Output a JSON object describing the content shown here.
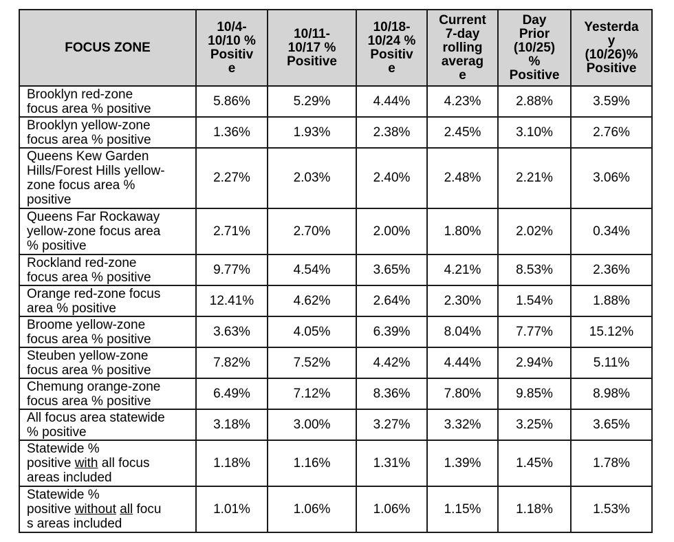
{
  "headers": [
    "FOCUS ZONE",
    "10/4-\n10/10 %\nPositiv\ne",
    "10/11-\n10/17 %\nPositive",
    "10/18-\n10/24 %\nPositiv\ne",
    "Current\n7-day\nrolling\naverag\ne",
    "Day\nPrior\n(10/25)\n%\nPositive",
    "Yesterda\ny\n(10/26)%\nPositive"
  ],
  "rows": [
    {
      "zone": "Brooklyn red-zone\nfocus area % positive",
      "values": [
        "5.86%",
        "5.29%",
        "4.44%",
        "4.23%",
        "2.88%",
        "3.59%"
      ]
    },
    {
      "zone": "Brooklyn yellow-zone\nfocus area % positive",
      "values": [
        "1.36%",
        "1.93%",
        "2.38%",
        "2.45%",
        "3.10%",
        "2.76%"
      ]
    },
    {
      "zone": "Queens Kew Garden\nHills/Forest Hills yellow-\nzone focus area %\npositive",
      "values": [
        "2.27%",
        "2.03%",
        "2.40%",
        "2.48%",
        "2.21%",
        "3.06%"
      ]
    },
    {
      "zone": "Queens Far Rockaway\n yellow-zone focus area\n% positive",
      "values": [
        "2.71%",
        "2.70%",
        "2.00%",
        "1.80%",
        "2.02%",
        "0.34%"
      ]
    },
    {
      "zone": "Rockland red-zone\nfocus area % positive",
      "values": [
        "9.77%",
        "4.54%",
        "3.65%",
        "4.21%",
        "8.53%",
        "2.36%"
      ]
    },
    {
      "zone": "Orange red-zone focus\narea % positive",
      "values": [
        "12.41%",
        "4.62%",
        "2.64%",
        "2.30%",
        "1.54%",
        "1.88%"
      ]
    },
    {
      "zone": "Broome yellow-zone\nfocus area % positive",
      "values": [
        "3.63%",
        "4.05%",
        "6.39%",
        "8.04%",
        "7.77%",
        "15.12%"
      ]
    },
    {
      "zone": "Steuben yellow-zone\nfocus area % positive",
      "values": [
        "7.82%",
        "7.52%",
        "4.42%",
        "4.44%",
        "2.94%",
        "5.11%"
      ]
    },
    {
      "zone": "Chemung orange-zone\nfocus area % positive",
      "values": [
        "6.49%",
        "7.12%",
        "8.36%",
        "7.80%",
        "9.85%",
        "8.98%"
      ]
    },
    {
      "zone": "All focus area statewide\n% positive",
      "values": [
        "3.18%",
        "3.00%",
        "3.27%",
        "3.32%",
        "3.25%",
        "3.65%"
      ]
    },
    {
      "zone_parts": [
        "Statewide %\npositive ",
        "with",
        " all focus\nareas included"
      ],
      "values": [
        "1.18%",
        "1.16%",
        "1.31%",
        "1.39%",
        "1.45%",
        "1.78%"
      ]
    },
    {
      "zone_parts": [
        "Statewide %\npositive ",
        "without",
        " ",
        "all",
        " focu\ns areas included"
      ],
      "values": [
        "1.01%",
        "1.06%",
        "1.06%",
        "1.15%",
        "1.18%",
        "1.53%"
      ]
    }
  ]
}
